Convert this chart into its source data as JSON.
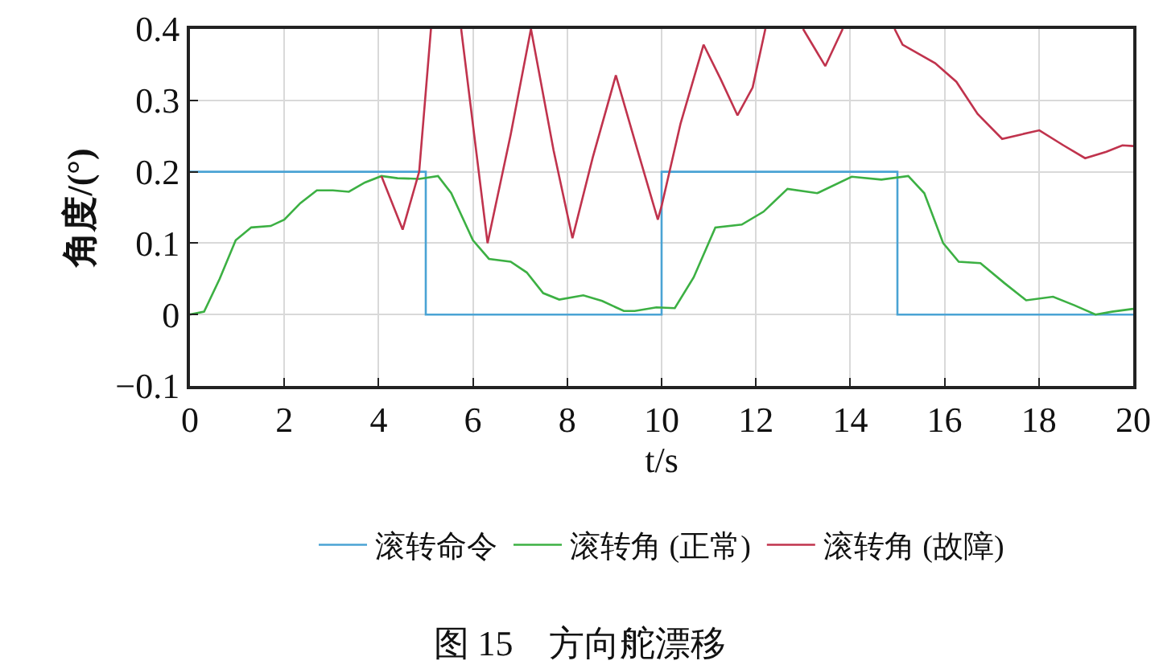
{
  "chart_data": {
    "type": "line",
    "title": "图 15　方向舵漂移",
    "xlabel": "t/s",
    "ylabel": "角度/(°)",
    "xlim": [
      0,
      20
    ],
    "xticks": [
      0,
      2,
      4,
      6,
      8,
      10,
      12,
      14,
      16,
      18,
      20
    ],
    "ylim": [
      -0.1,
      0.4
    ],
    "yticks": [
      {
        "value": -0.1,
        "label": "−0.1"
      },
      0,
      0.1,
      0.2,
      0.3,
      0.4
    ],
    "grid": true,
    "legend": "bottom",
    "marker": "none",
    "line_style": "solid",
    "series": [
      {
        "name": "滚转命令",
        "color": "#4aa3d4",
        "x": [
          0,
          5,
          5,
          10,
          10,
          15,
          15,
          20
        ],
        "values": [
          0.2,
          0.2,
          0,
          0,
          0.2,
          0.2,
          0,
          0
        ]
      },
      {
        "name": "滚转角 (正常)",
        "color": "#3cb043",
        "x": [
          0,
          0.3,
          0.63,
          0.97,
          1.3,
          1.71,
          2,
          2.34,
          2.69,
          3.03,
          3.37,
          3.71,
          4.06,
          4.4,
          4.86,
          5.26,
          5.54,
          6,
          6.34,
          6.8,
          7.14,
          7.49,
          7.83,
          8.34,
          8.74,
          9.2,
          9.43,
          9.89,
          10.28,
          10.68,
          11.14,
          11.7,
          12.16,
          12.67,
          13.3,
          14.03,
          14.66,
          15.23,
          15.57,
          15.97,
          16.3,
          16.76,
          17.27,
          17.73,
          18.3,
          18.75,
          19.2,
          19.55,
          20
        ],
        "values": [
          0,
          0.004,
          0.05,
          0.104,
          0.122,
          0.124,
          0.133,
          0.156,
          0.174,
          0.174,
          0.172,
          0.185,
          0.194,
          0.191,
          0.19,
          0.194,
          0.17,
          0.104,
          0.078,
          0.074,
          0.059,
          0.03,
          0.021,
          0.027,
          0.019,
          0.005,
          0.005,
          0.01,
          0.009,
          0.052,
          0.122,
          0.126,
          0.144,
          0.176,
          0.17,
          0.193,
          0.189,
          0.194,
          0.17,
          0.1,
          0.074,
          0.072,
          0.044,
          0.02,
          0.025,
          0.013,
          0,
          0.004,
          0.008
        ]
      },
      {
        "name": "滚转角 (故障)",
        "color": "#c0334d",
        "x": [
          4.06,
          4.51,
          4.86,
          5.11,
          5.4,
          5.75,
          6.31,
          6.8,
          7.23,
          7.71,
          8.11,
          8.54,
          9.03,
          9.49,
          9.92,
          10,
          10.4,
          10.89,
          11.25,
          11.61,
          11.93,
          12.2,
          12.6,
          13,
          13.47,
          13.84,
          14.4,
          14.94,
          15.11,
          15.8,
          16.25,
          16.7,
          17.22,
          17.61,
          18.01,
          18.52,
          18.98,
          19.43,
          19.77,
          20
        ],
        "values": [
          0.194,
          0.119,
          0.2,
          0.4,
          null,
          0.4,
          0.1,
          0.252,
          0.4,
          0.23,
          0.107,
          0.22,
          0.335,
          0.23,
          0.133,
          0.152,
          0.267,
          0.378,
          0.33,
          0.279,
          0.318,
          0.4,
          null,
          0.4,
          0.348,
          0.4,
          null,
          0.4,
          0.378,
          0.352,
          0.326,
          0.281,
          0.246,
          0.252,
          0.258,
          0.237,
          0.219,
          0.228,
          0.237,
          0.236
        ]
      }
    ]
  }
}
